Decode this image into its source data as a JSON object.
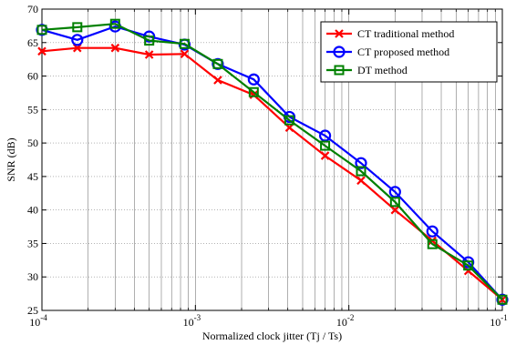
{
  "chart_data": {
    "type": "line",
    "xscale": "log",
    "xlim": [
      0.0001,
      0.1
    ],
    "ylim": [
      25,
      70
    ],
    "xlabel": "Normalized clock jitter (Tj / Ts)",
    "ylabel": "SNR (dB)",
    "grid": true,
    "legend_position": "top-right",
    "x_ticks": [
      {
        "value": 0.0001,
        "base": "10",
        "exp": "-4"
      },
      {
        "value": 0.001,
        "base": "10",
        "exp": "-3"
      },
      {
        "value": 0.01,
        "base": "10",
        "exp": "-2"
      },
      {
        "value": 0.1,
        "base": "10",
        "exp": "-1"
      }
    ],
    "y_ticks": [
      "25",
      "30",
      "35",
      "40",
      "45",
      "50",
      "55",
      "60",
      "65",
      "70"
    ],
    "series": [
      {
        "name": "CT traditional method",
        "color": "#ff0000",
        "marker": "x",
        "x": [
          0.0001,
          0.00017,
          0.0003,
          0.0005,
          0.00085,
          0.0014,
          0.0024,
          0.0041,
          0.007,
          0.012,
          0.02,
          0.035,
          0.06,
          0.1
        ],
        "y": [
          63.7,
          64.2,
          64.2,
          63.2,
          63.3,
          59.4,
          57.2,
          52.3,
          48.1,
          44.4,
          40.0,
          35.4,
          30.9,
          26.6
        ]
      },
      {
        "name": "CT proposed method",
        "color": "#0000ff",
        "marker": "o",
        "x": [
          0.0001,
          0.00017,
          0.0003,
          0.0005,
          0.00085,
          0.0014,
          0.0024,
          0.0041,
          0.007,
          0.012,
          0.02,
          0.035,
          0.06,
          0.1
        ],
        "y": [
          66.9,
          65.4,
          67.4,
          65.9,
          64.7,
          61.8,
          59.5,
          53.9,
          51.1,
          47.0,
          42.7,
          36.8,
          32.2,
          26.6
        ]
      },
      {
        "name": "DT method",
        "color": "#008000",
        "marker": "s",
        "x": [
          0.0001,
          0.00017,
          0.0003,
          0.0005,
          0.00085,
          0.0014,
          0.0024,
          0.0041,
          0.007,
          0.012,
          0.02,
          0.035,
          0.06,
          0.1
        ],
        "y": [
          66.9,
          67.3,
          67.8,
          65.3,
          64.8,
          61.8,
          57.6,
          53.4,
          49.6,
          45.8,
          41.2,
          34.9,
          31.7,
          26.6
        ]
      }
    ]
  }
}
